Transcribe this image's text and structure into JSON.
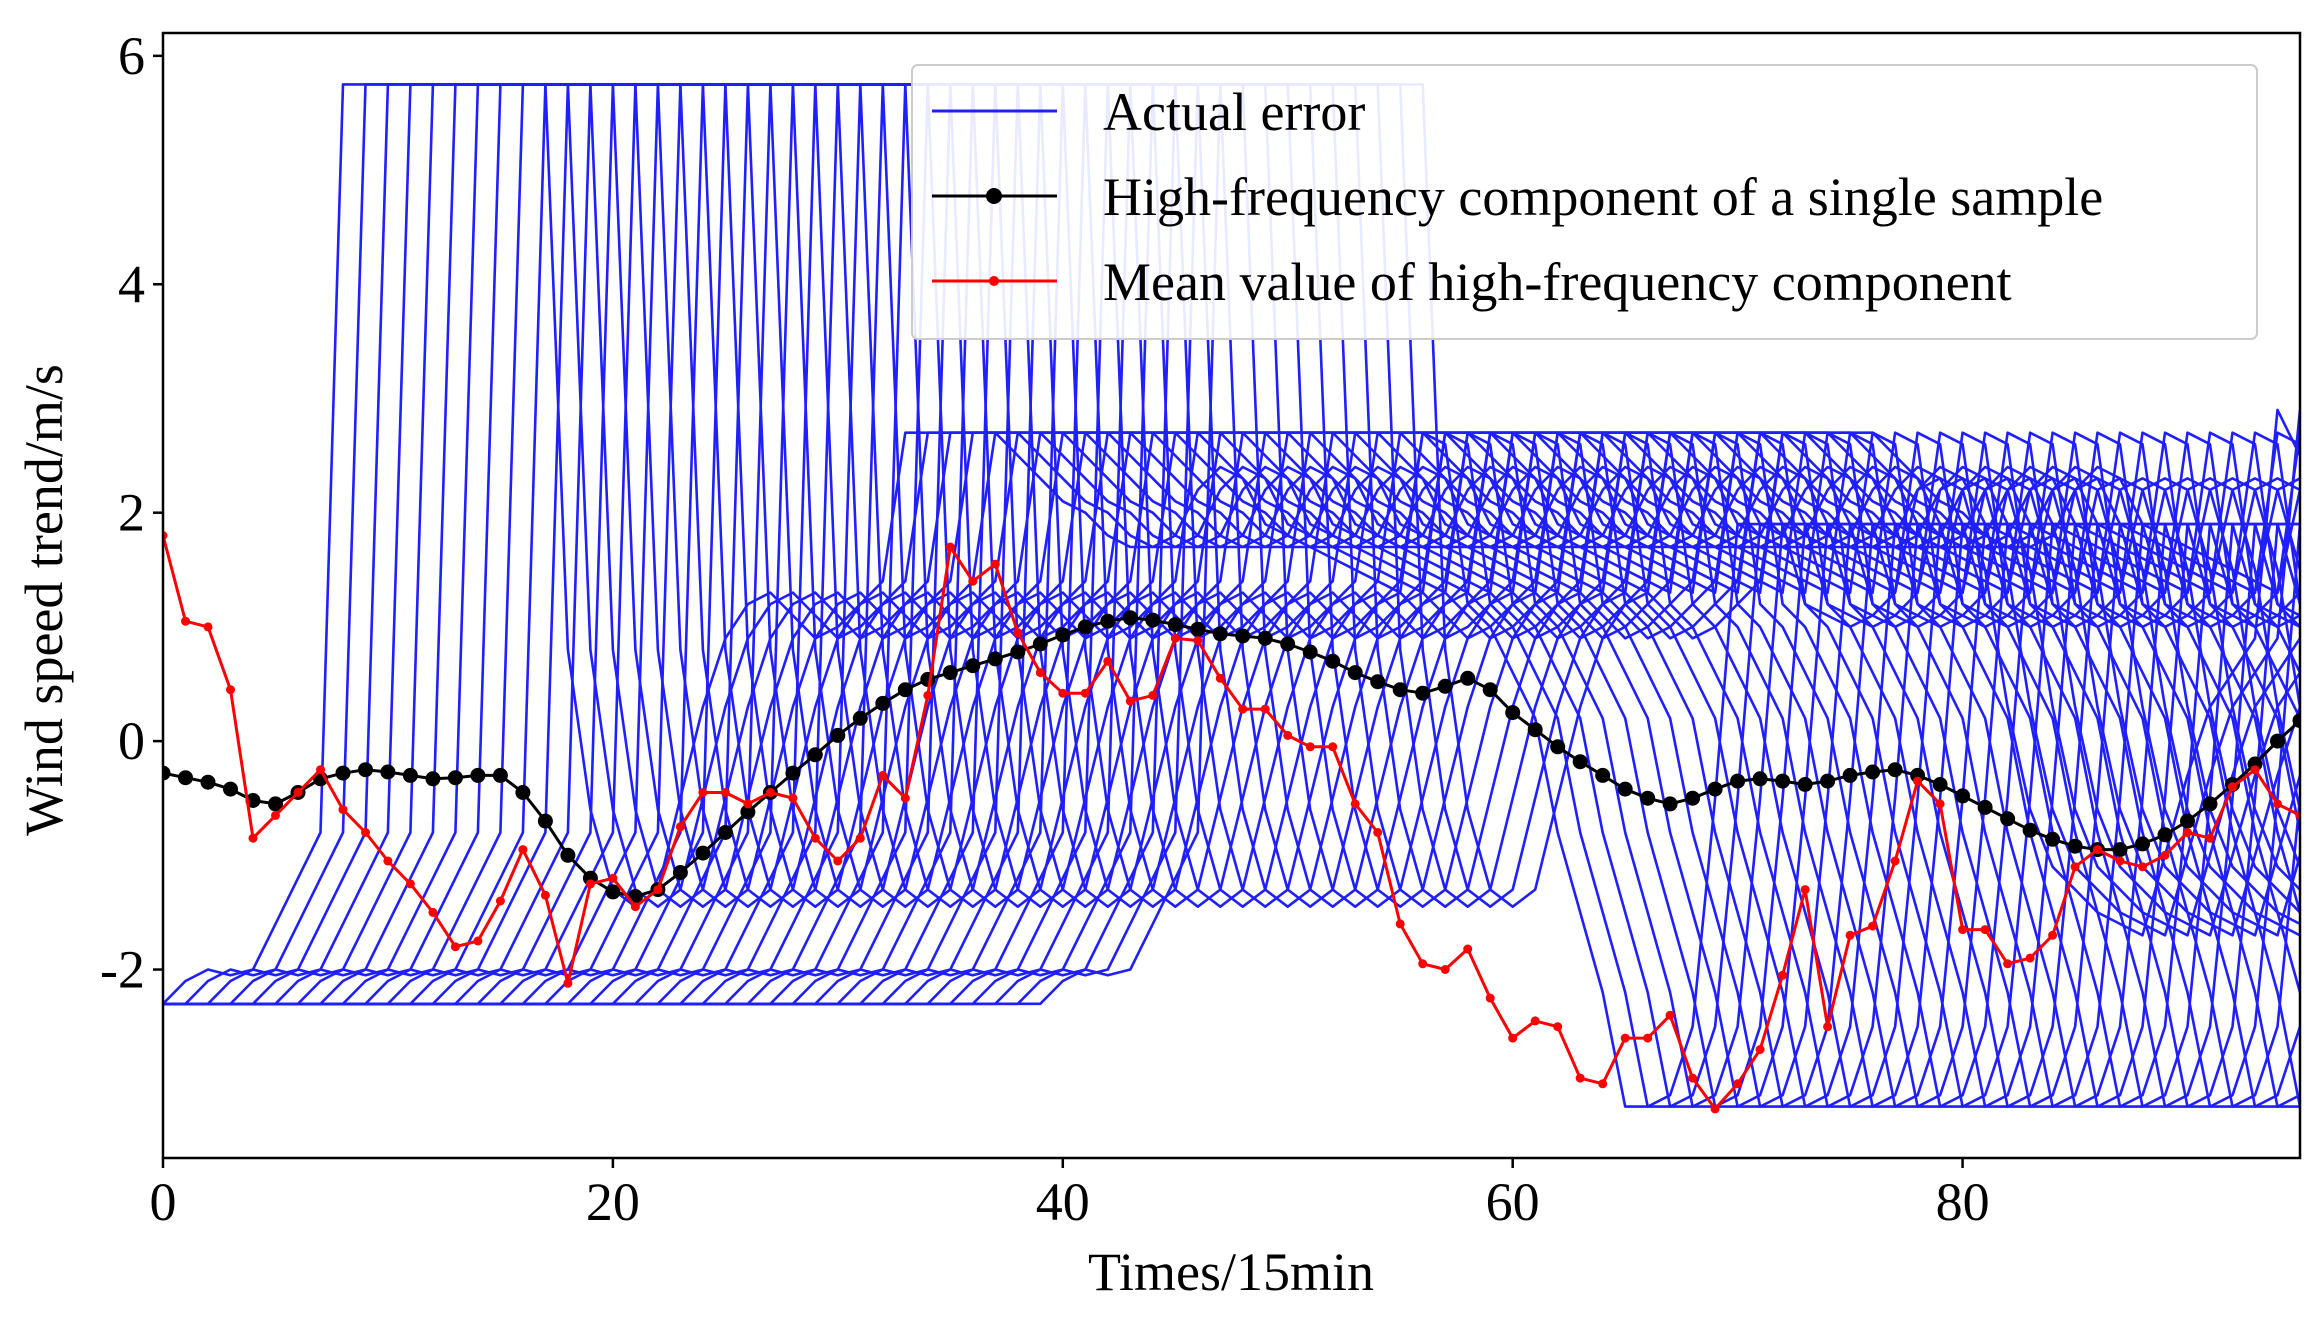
{
  "chart_data": {
    "type": "line",
    "title": "",
    "xlabel": "Times/15min",
    "ylabel": "Wind speed trend/m/s",
    "xlim": [
      0,
      95
    ],
    "ylim": [
      -3.65,
      6.2
    ],
    "xticks": [
      0,
      20,
      40,
      60,
      80
    ],
    "yticks": [
      -2,
      0,
      2,
      4,
      6
    ],
    "ytick_labels": [
      "-2",
      "0",
      "2",
      "4",
      "6"
    ],
    "legend_position": "top-right",
    "colors": {
      "actual": "#1f1fff",
      "single": "#000000",
      "mean": "#ff0000"
    },
    "actual_error_profile": [
      -2.3,
      -2.1,
      -2.0,
      -2.05,
      -2.0,
      -1.6,
      -1.2,
      -0.8,
      5.75,
      5.75,
      5.75,
      5.75,
      5.75,
      5.75,
      5.75,
      5.75,
      5.75,
      5.75,
      0.8,
      -0.6,
      -1.3,
      -1.45,
      -1.3,
      -0.5,
      0.3,
      0.9,
      1.2,
      1.3,
      1.1,
      0.9,
      1.0,
      1.2,
      1.4,
      2.7,
      2.7,
      2.7,
      2.7,
      2.7,
      2.5,
      2.3,
      2.1,
      2.0,
      1.8,
      1.7,
      1.7,
      1.8,
      2.2,
      2.4,
      2.3,
      1.9,
      1.8,
      1.7,
      1.6,
      1.5,
      1.4,
      1.3,
      2.7,
      2.6,
      1.2,
      1.0,
      0.6,
      0.2,
      -0.8,
      -1.5,
      -2.2,
      -3.2,
      -3.2,
      -3.1,
      -2.5,
      -0.5,
      1.9,
      1.9,
      1.9,
      1.2,
      1.1,
      1.0,
      1.1,
      1.3,
      2.2,
      2.3,
      2.2,
      1.5,
      0.3,
      -0.6,
      -1.1,
      -1.3,
      -1.5,
      -1.6,
      -1.7,
      -1.0,
      -0.3,
      0.3,
      0.6,
      0.9,
      2.9,
      2.5
    ],
    "actual_error_shifts": [
      0,
      1,
      2,
      3,
      4,
      5,
      6,
      7,
      8,
      9,
      10,
      11,
      12,
      13,
      14,
      15,
      16,
      17,
      18,
      19,
      20,
      21,
      22,
      23,
      24,
      25,
      26,
      27,
      28,
      29,
      30,
      31,
      32,
      33,
      34,
      35,
      36,
      37,
      38,
      39
    ],
    "series": [
      {
        "name": "Actual error",
        "style": "line"
      },
      {
        "name": "High-frequency component of a single sample",
        "style": "line-marker-circle",
        "x": [
          0,
          1,
          2,
          3,
          4,
          5,
          6,
          7,
          8,
          9,
          10,
          11,
          12,
          13,
          14,
          15,
          16,
          17,
          18,
          19,
          20,
          21,
          22,
          23,
          24,
          25,
          26,
          27,
          28,
          29,
          30,
          31,
          32,
          33,
          34,
          35,
          36,
          37,
          38,
          39,
          40,
          41,
          42,
          43,
          44,
          45,
          46,
          47,
          48,
          49,
          50,
          51,
          52,
          53,
          54,
          55,
          56,
          57,
          58,
          59,
          60,
          61,
          62,
          63,
          64,
          65,
          66,
          67,
          68,
          69,
          70,
          71,
          72,
          73,
          74,
          75,
          76,
          77,
          78,
          79,
          80,
          81,
          82,
          83,
          84,
          85,
          86,
          87,
          88,
          89,
          90,
          91,
          92,
          93,
          94,
          95
        ],
        "y": [
          -0.28,
          -0.32,
          -0.36,
          -0.42,
          -0.52,
          -0.55,
          -0.45,
          -0.33,
          -0.28,
          -0.25,
          -0.27,
          -0.3,
          -0.33,
          -0.32,
          -0.3,
          -0.3,
          -0.45,
          -0.7,
          -1.0,
          -1.2,
          -1.32,
          -1.36,
          -1.3,
          -1.15,
          -0.98,
          -0.8,
          -0.62,
          -0.45,
          -0.28,
          -0.12,
          0.05,
          0.2,
          0.33,
          0.45,
          0.54,
          0.6,
          0.66,
          0.72,
          0.78,
          0.85,
          0.93,
          1.0,
          1.05,
          1.08,
          1.06,
          1.02,
          0.98,
          0.94,
          0.92,
          0.9,
          0.85,
          0.78,
          0.7,
          0.6,
          0.52,
          0.45,
          0.42,
          0.48,
          0.55,
          0.45,
          0.25,
          0.1,
          -0.05,
          -0.18,
          -0.3,
          -0.42,
          -0.5,
          -0.55,
          -0.5,
          -0.42,
          -0.35,
          -0.33,
          -0.35,
          -0.38,
          -0.35,
          -0.3,
          -0.27,
          -0.25,
          -0.3,
          -0.38,
          -0.48,
          -0.58,
          -0.68,
          -0.78,
          -0.86,
          -0.92,
          -0.95,
          -0.95,
          -0.9,
          -0.82,
          -0.7,
          -0.55,
          -0.38,
          -0.2,
          0.0,
          0.18
        ]
      },
      {
        "name": "Mean value of high-frequency component",
        "style": "line-marker-diamond",
        "x": [
          0,
          1,
          2,
          3,
          4,
          5,
          6,
          7,
          8,
          9,
          10,
          11,
          12,
          13,
          14,
          15,
          16,
          17,
          18,
          19,
          20,
          21,
          22,
          23,
          24,
          25,
          26,
          27,
          28,
          29,
          30,
          31,
          32,
          33,
          34,
          35,
          36,
          37,
          38,
          39,
          40,
          41,
          42,
          43,
          44,
          45,
          46,
          47,
          48,
          49,
          50,
          51,
          52,
          53,
          54,
          55,
          56,
          57,
          58,
          59,
          60,
          61,
          62,
          63,
          64,
          65,
          66,
          67,
          68,
          69,
          70,
          71,
          72,
          73,
          74,
          75,
          76,
          77,
          78,
          79,
          80,
          81,
          82,
          83,
          84,
          85,
          86,
          87,
          88,
          89,
          90,
          91,
          92,
          93,
          94,
          95
        ],
        "y": [
          1.8,
          1.05,
          1.0,
          0.45,
          -0.85,
          -0.65,
          -0.45,
          -0.25,
          -0.6,
          -0.8,
          -1.05,
          -1.25,
          -1.5,
          -1.8,
          -1.75,
          -1.4,
          -0.95,
          -1.35,
          -2.12,
          -1.25,
          -1.2,
          -1.45,
          -1.3,
          -0.75,
          -0.45,
          -0.45,
          -0.55,
          -0.45,
          -0.5,
          -0.85,
          -1.05,
          -0.85,
          -0.3,
          -0.5,
          0.4,
          1.7,
          1.4,
          1.55,
          0.95,
          0.6,
          0.42,
          0.42,
          0.7,
          0.35,
          0.4,
          0.9,
          0.88,
          0.55,
          0.28,
          0.28,
          0.05,
          -0.05,
          -0.05,
          -0.55,
          -0.8,
          -1.6,
          -1.95,
          -2.0,
          -1.82,
          -2.25,
          -2.6,
          -2.45,
          -2.5,
          -2.95,
          -3.0,
          -2.6,
          -2.6,
          -2.4,
          -2.95,
          -3.22,
          -3.0,
          -2.7,
          -2.05,
          -1.3,
          -2.5,
          -1.7,
          -1.62,
          -1.05,
          -0.35,
          -0.55,
          -1.65,
          -1.65,
          -1.95,
          -1.9,
          -1.7,
          -1.1,
          -0.95,
          -1.05,
          -1.1,
          -1.0,
          -0.8,
          -0.85,
          -0.4,
          -0.25,
          -0.55,
          -0.65
        ]
      }
    ]
  }
}
